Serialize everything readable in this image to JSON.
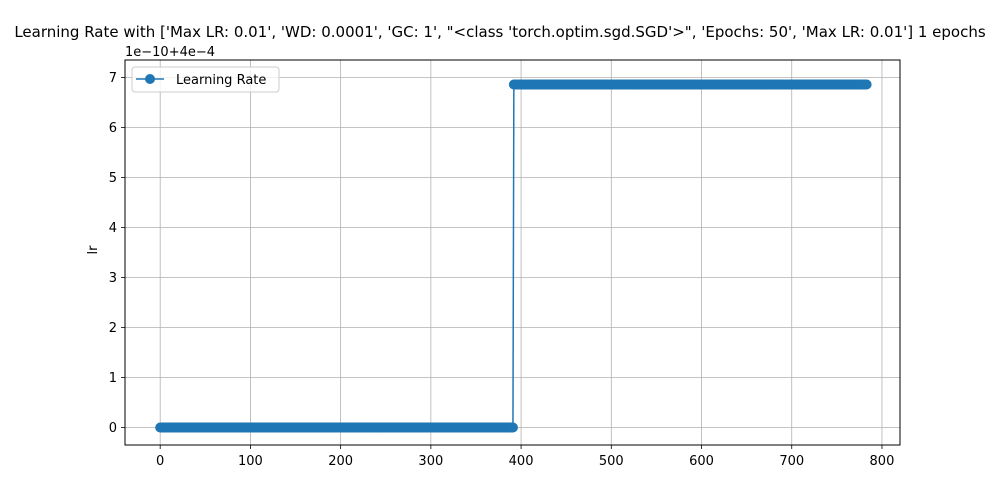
{
  "chart_data": {
    "type": "line",
    "title": "Learning Rate with ['Max LR: 0.01', 'WD: 0.0001', 'GC: 1', \"<class 'torch.optim.sgd.SGD'>\", 'Epochs: 50', 'Max LR: 0.01'] 1 epochs",
    "xlabel": "",
    "ylabel": "lr",
    "offset_label": "1e−10+4e−4",
    "xlim": [
      -39,
      820
    ],
    "ylim": [
      -0.35,
      7.35
    ],
    "xticks": [
      0,
      100,
      200,
      300,
      400,
      500,
      600,
      700,
      800
    ],
    "yticks": [
      0,
      1,
      2,
      3,
      4,
      5,
      6,
      7
    ],
    "grid": true,
    "legend_position": "top-left",
    "series": [
      {
        "name": "Learning Rate",
        "color": "#1f77b4",
        "marker": "circle",
        "segments": [
          {
            "x_start": 0,
            "x_end": 391,
            "y": 0
          },
          {
            "x_start": 392,
            "x_end": 783,
            "y": 6.86
          }
        ]
      }
    ]
  }
}
